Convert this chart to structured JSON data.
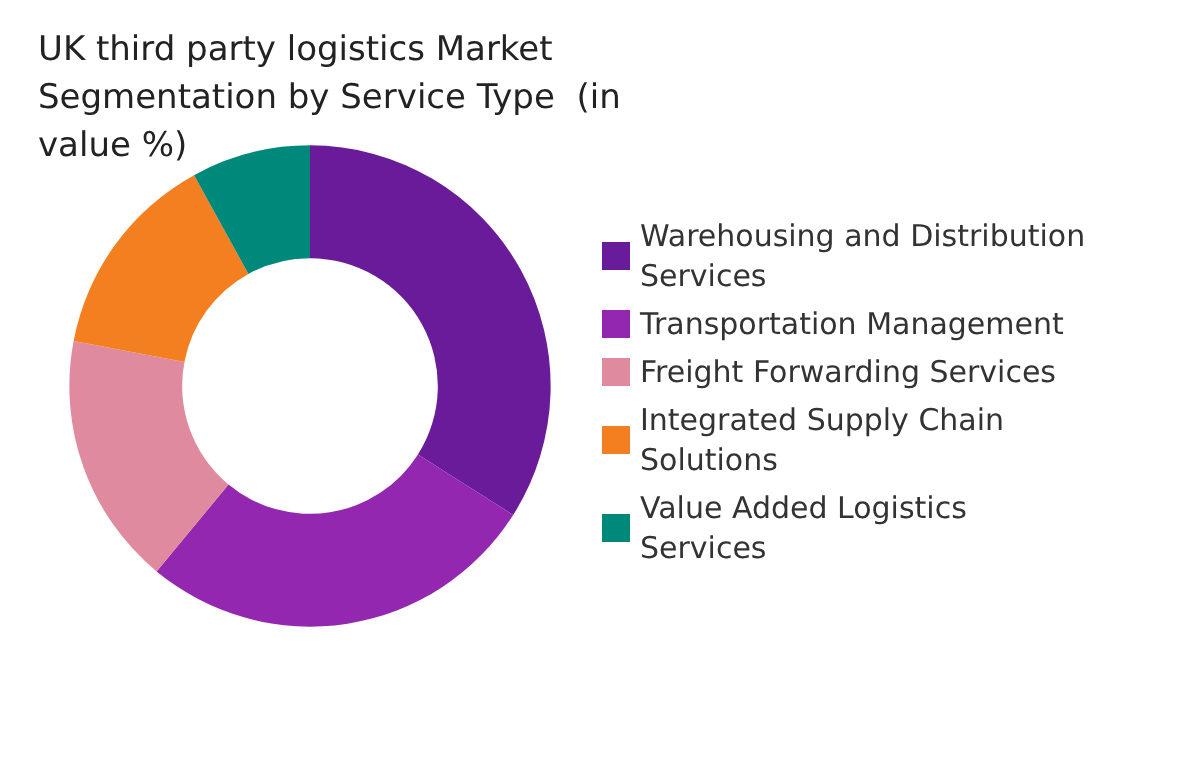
{
  "chart_data": {
    "type": "donut",
    "title": "UK third party logistics Market Segmentation by Service Type  (in value %)",
    "categories": [
      "Warehousing and Distribution Services",
      "Transportation Management",
      "Freight Forwarding Services",
      "Integrated Supply Chain Solutions",
      "Value Added Logistics Services"
    ],
    "values": [
      34,
      27,
      17,
      14,
      8
    ],
    "colors": [
      "#6a1b9a",
      "#9327b0",
      "#e08a9f",
      "#f47f20",
      "#00897b"
    ],
    "legend": "right"
  }
}
